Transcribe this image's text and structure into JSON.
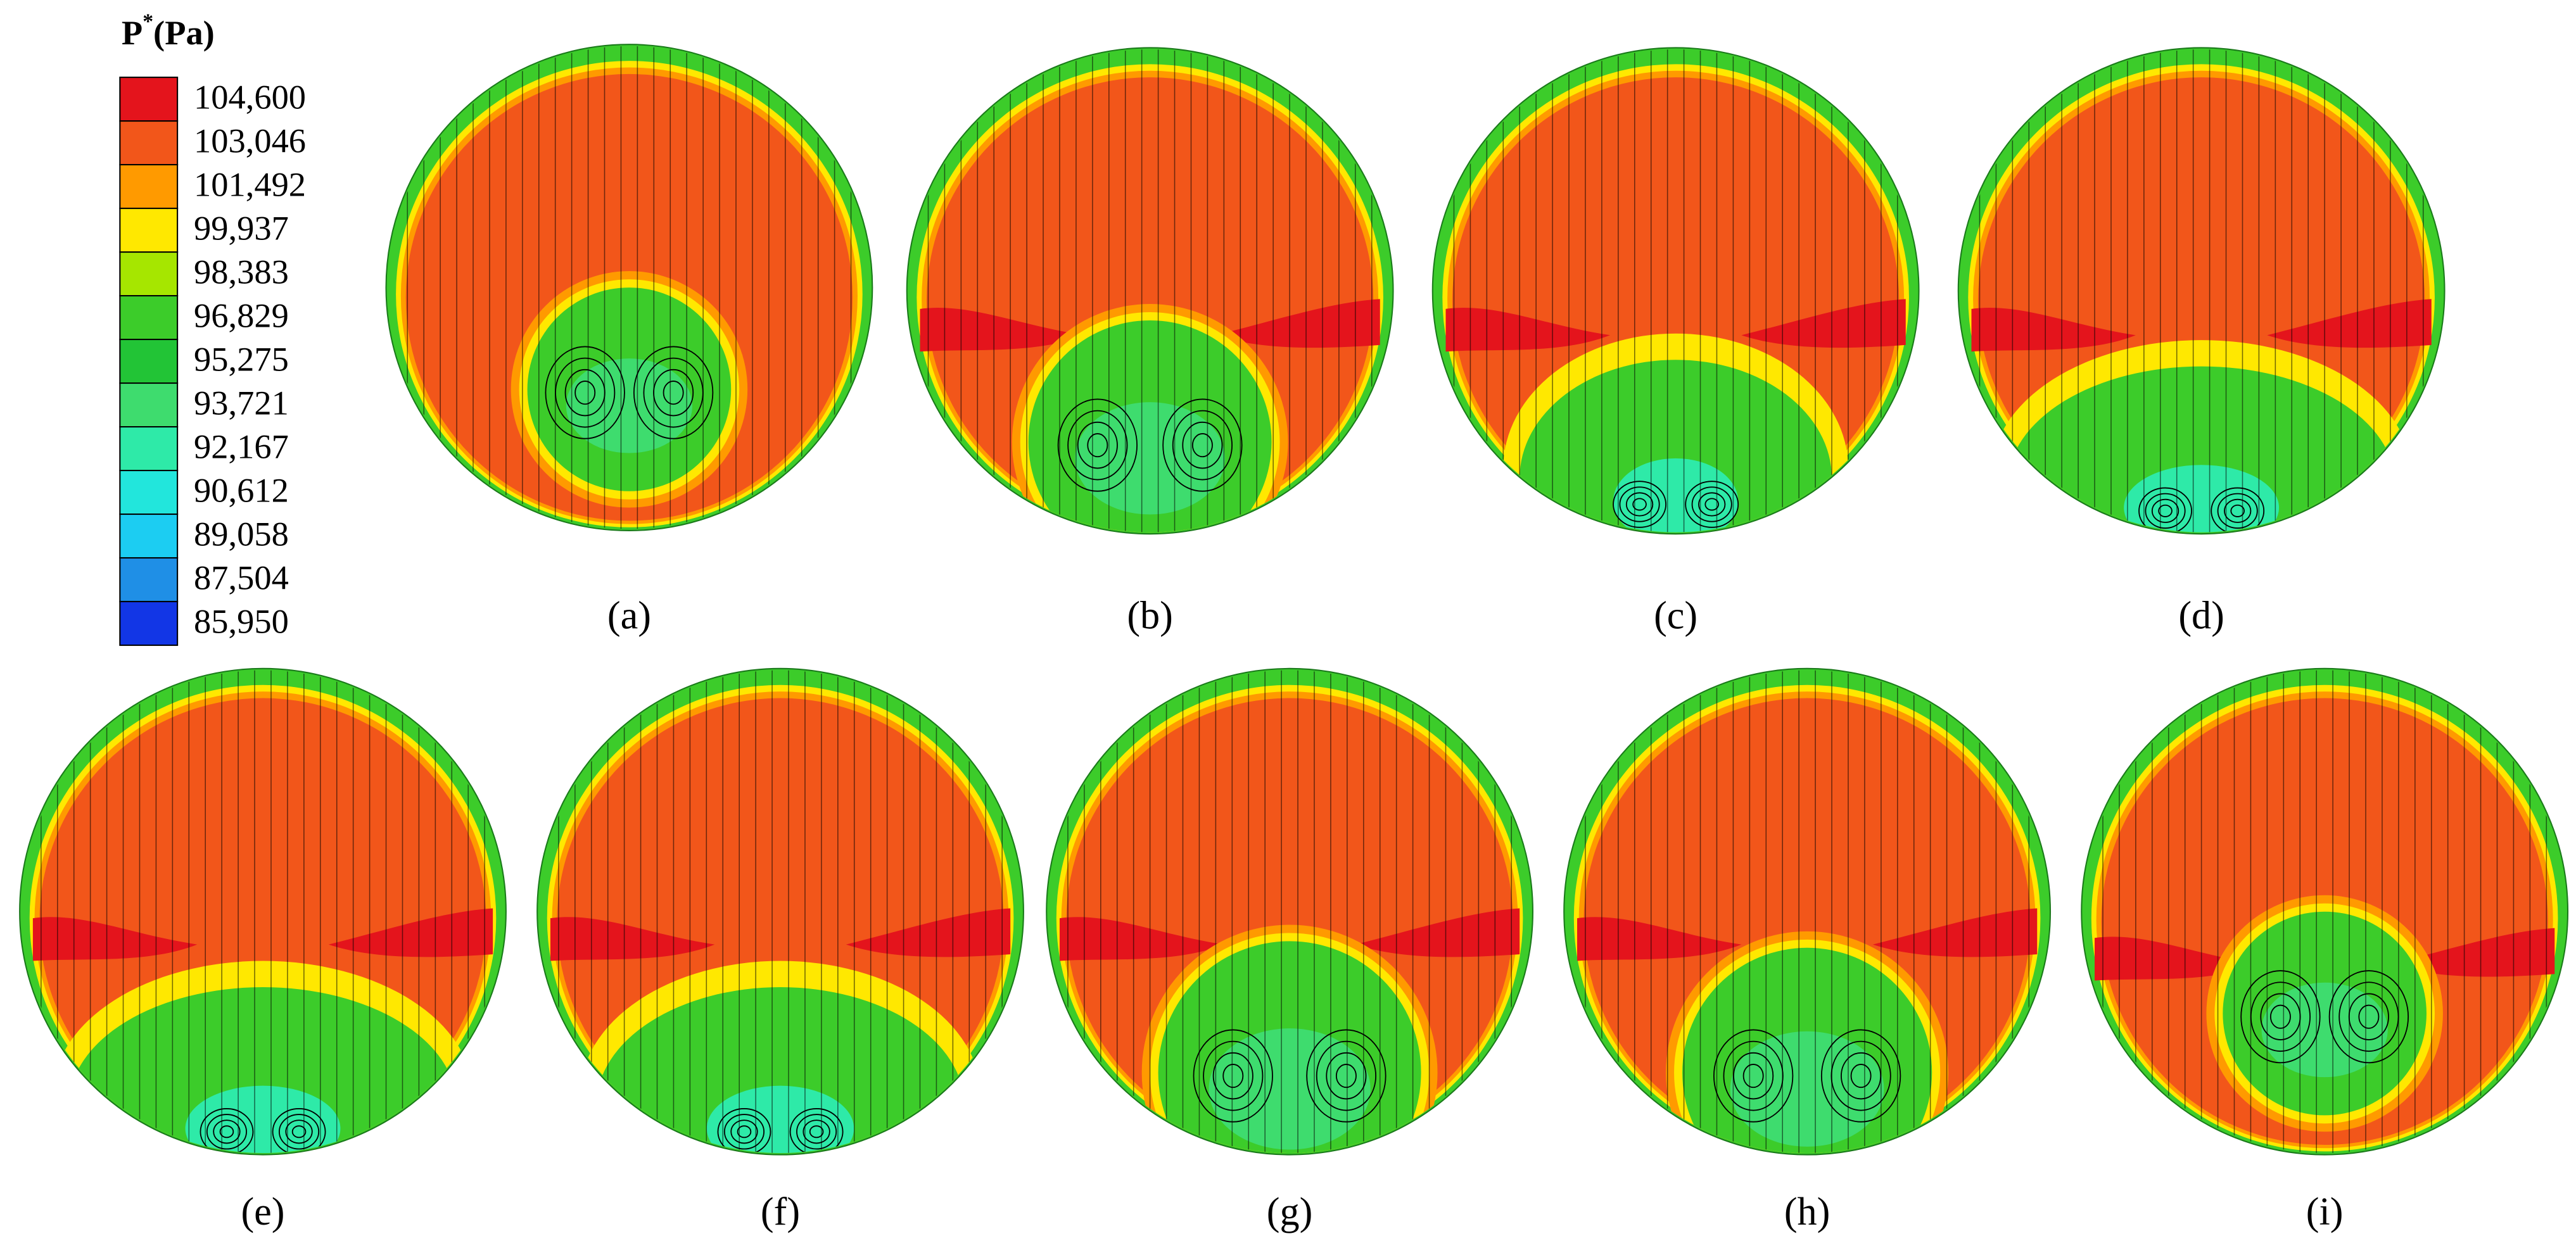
{
  "legend": {
    "title": {
      "symbol": "P",
      "superscript": "*",
      "unit": "(Pa)"
    },
    "levels": [
      {
        "label": "104,600",
        "color": "#e4141c"
      },
      {
        "label": "103,046",
        "color": "#f2561a"
      },
      {
        "label": "101,492",
        "color": "#ff9a00"
      },
      {
        "label": "99,937",
        "color": "#ffe800"
      },
      {
        "label": "98,383",
        "color": "#a6e600"
      },
      {
        "label": "96,829",
        "color": "#3ccc2a"
      },
      {
        "label": "95,275",
        "color": "#22c436"
      },
      {
        "label": "93,721",
        "color": "#3edc6e"
      },
      {
        "label": "92,167",
        "color": "#2eeaa8"
      },
      {
        "label": "90,612",
        "color": "#22e6dc"
      },
      {
        "label": "89,058",
        "color": "#1ccdf2"
      },
      {
        "label": "87,504",
        "color": "#1f8fe6"
      },
      {
        "label": "85,950",
        "color": "#1236e6"
      }
    ]
  },
  "panels": [
    {
      "label": "(a)"
    },
    {
      "label": "(b)"
    },
    {
      "label": "(c)"
    },
    {
      "label": "(d)"
    },
    {
      "label": "(e)"
    },
    {
      "label": "(f)"
    },
    {
      "label": "(g)"
    },
    {
      "label": "(h)"
    },
    {
      "label": "(i)"
    }
  ]
}
